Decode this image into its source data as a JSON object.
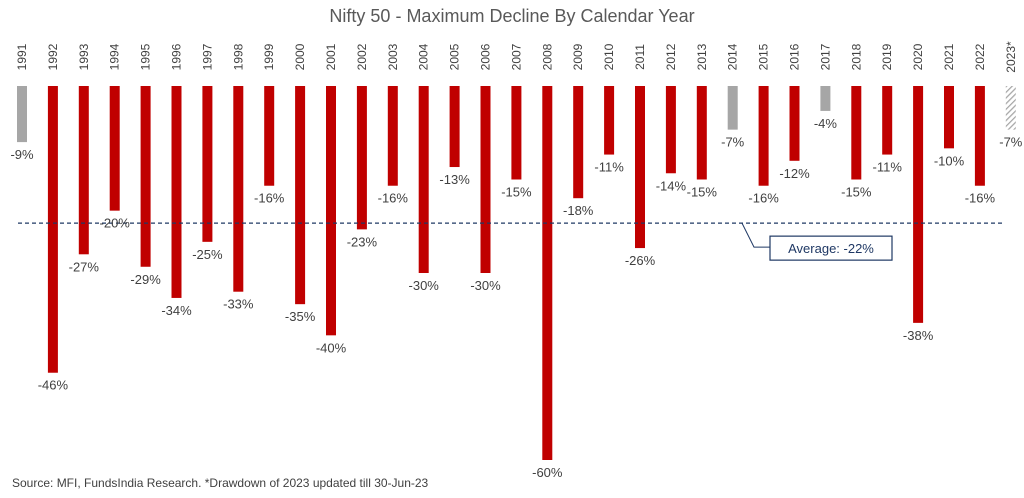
{
  "chart_data": {
    "type": "bar",
    "title": "Nifty 50 - Maximum Decline By Calendar Year",
    "categories": [
      "1991",
      "1992",
      "1993",
      "1994",
      "1995",
      "1996",
      "1997",
      "1998",
      "1999",
      "2000",
      "2001",
      "2002",
      "2003",
      "2004",
      "2005",
      "2006",
      "2007",
      "2008",
      "2009",
      "2010",
      "2011",
      "2012",
      "2013",
      "2014",
      "2015",
      "2016",
      "2017",
      "2018",
      "2019",
      "2020",
      "2021",
      "2022",
      "2023*"
    ],
    "values": [
      -9,
      -46,
      -27,
      -20,
      -29,
      -34,
      -25,
      -33,
      -16,
      -35,
      -40,
      -23,
      -16,
      -30,
      -13,
      -30,
      -15,
      -60,
      -18,
      -11,
      -26,
      -14,
      -15,
      -7,
      -16,
      -12,
      -4,
      -15,
      -11,
      -38,
      -10,
      -16,
      -7
    ],
    "value_labels": [
      "-9%",
      "-46%",
      "-27%",
      "-20%",
      "-29%",
      "-34%",
      "-25%",
      "-33%",
      "-16%",
      "-35%",
      "-40%",
      "-23%",
      "-16%",
      "-30%",
      "-13%",
      "-30%",
      "-15%",
      "-60%",
      "-18%",
      "-11%",
      "-26%",
      "-14%",
      "-15%",
      "-7%",
      "-16%",
      "-12%",
      "-4%",
      "-15%",
      "-11%",
      "-38%",
      "-10%",
      "-16%",
      "-7%"
    ],
    "bar_colors": [
      "#a6a6a6",
      "#c00000",
      "#c00000",
      "#c00000",
      "#c00000",
      "#c00000",
      "#c00000",
      "#c00000",
      "#c00000",
      "#c00000",
      "#c00000",
      "#c00000",
      "#c00000",
      "#c00000",
      "#c00000",
      "#c00000",
      "#c00000",
      "#c00000",
      "#c00000",
      "#c00000",
      "#c00000",
      "#c00000",
      "#c00000",
      "#a6a6a6",
      "#c00000",
      "#c00000",
      "#a6a6a6",
      "#c00000",
      "#c00000",
      "#c00000",
      "#c00000",
      "#c00000",
      "hatched-gray"
    ],
    "ylim": [
      -60,
      0
    ],
    "average": {
      "value": -22,
      "label": "Average: -22%"
    },
    "grid": false,
    "legend": "none",
    "colors": {
      "decline": "#c00000",
      "small_decline": "#a6a6a6",
      "average_line": "#1f3864"
    }
  },
  "footer": {
    "source": "Source: MFI, FundsIndia Research. *Drawdown of 2023 updated till 30-Jun-23"
  }
}
